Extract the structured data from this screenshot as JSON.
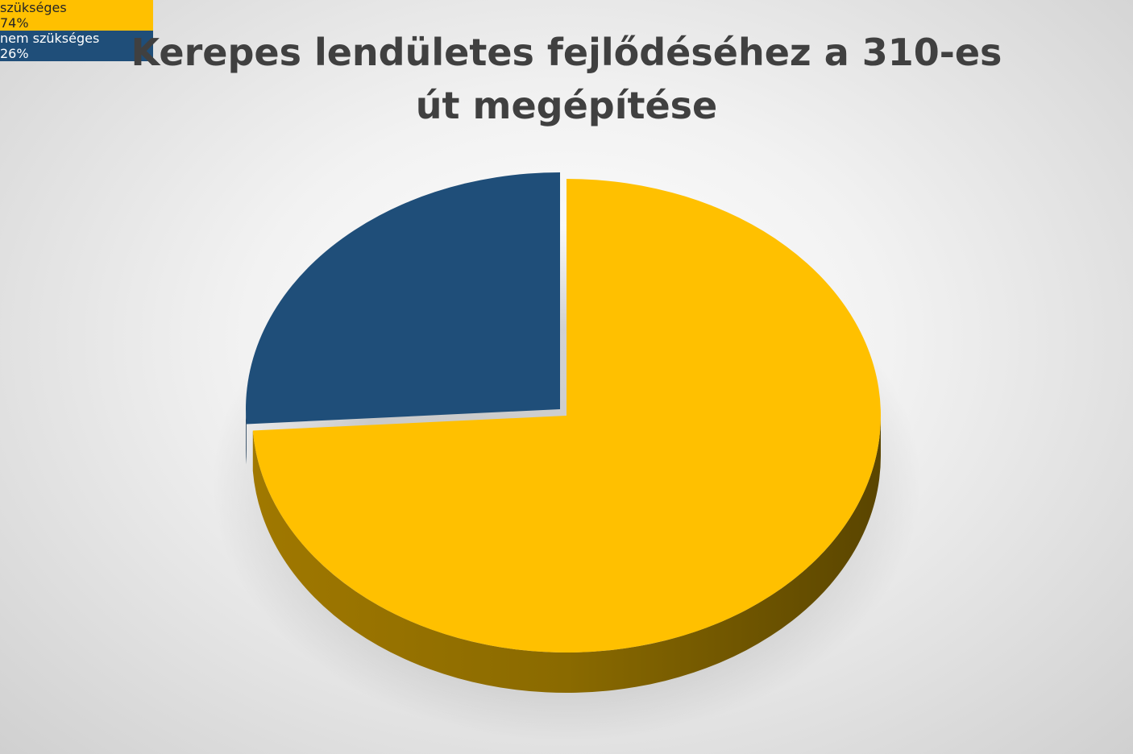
{
  "chart_data": {
    "type": "pie",
    "title": "Kerepes lendületes fejlődéséhez a 310-es út megépítése",
    "categories": [
      "szükséges",
      "nem szükséges"
    ],
    "values": [
      74,
      26
    ],
    "value_labels": [
      "74%",
      "26%"
    ],
    "colors": [
      "#ffc000",
      "#1f4e79"
    ]
  }
}
